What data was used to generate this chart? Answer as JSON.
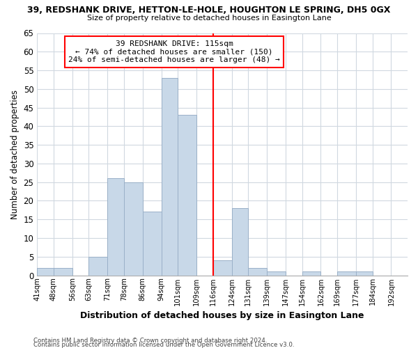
{
  "title_line1": "39, REDSHANK DRIVE, HETTON-LE-HOLE, HOUGHTON LE SPRING, DH5 0GX",
  "title_line2": "Size of property relative to detached houses in Easington Lane",
  "xlabel": "Distribution of detached houses by size in Easington Lane",
  "ylabel": "Number of detached properties",
  "footer_line1": "Contains HM Land Registry data © Crown copyright and database right 2024.",
  "footer_line2": "Contains public sector information licensed under the Open Government Licence v3.0.",
  "bin_labels": [
    "41sqm",
    "48sqm",
    "56sqm",
    "63sqm",
    "71sqm",
    "78sqm",
    "86sqm",
    "94sqm",
    "101sqm",
    "109sqm",
    "116sqm",
    "124sqm",
    "131sqm",
    "139sqm",
    "147sqm",
    "154sqm",
    "162sqm",
    "169sqm",
    "177sqm",
    "184sqm",
    "192sqm"
  ],
  "bin_edges": [
    41,
    48,
    56,
    63,
    71,
    78,
    86,
    94,
    101,
    109,
    116,
    124,
    131,
    139,
    147,
    154,
    162,
    169,
    177,
    184,
    192
  ],
  "bar_heights": [
    2,
    2,
    0,
    5,
    26,
    25,
    17,
    53,
    43,
    0,
    4,
    18,
    2,
    1,
    0,
    1,
    0,
    1,
    1,
    0
  ],
  "bar_color": "#c8d8e8",
  "bar_edge_color": "#9ab0c8",
  "reference_line_x": 116,
  "reference_line_color": "red",
  "annotation_title": "39 REDSHANK DRIVE: 115sqm",
  "annotation_line1": "← 74% of detached houses are smaller (150)",
  "annotation_line2": "24% of semi-detached houses are larger (48) →",
  "annotation_box_edge_color": "red",
  "ylim": [
    0,
    65
  ],
  "yticks": [
    0,
    5,
    10,
    15,
    20,
    25,
    30,
    35,
    40,
    45,
    50,
    55,
    60,
    65
  ],
  "background_color": "#ffffff",
  "grid_color": "#d0d8e0"
}
